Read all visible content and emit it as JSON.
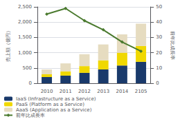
{
  "chart_data": {
    "type": "bar",
    "categories": [
      "2010",
      "2011",
      "2012",
      "2013",
      "2014",
      "2105"
    ],
    "stacked": true,
    "grid": true,
    "legend": "bottom",
    "ylabel": "売上額（億円）",
    "y2label": "前年比成長率",
    "ylim": [
      0,
      2500
    ],
    "yticks": [
      0,
      500,
      {
        "value": 1000,
        "label": "1,000"
      },
      {
        "value": 1500,
        "label": "1,500"
      },
      {
        "value": 2000,
        "label": "2,000"
      },
      {
        "value": 2500,
        "label": "2,500"
      }
    ],
    "y2lim": [
      0,
      50
    ],
    "y2ticks": [
      0,
      10,
      20,
      30,
      40,
      50
    ],
    "series": [
      {
        "name": "IaaS (Infrastructure as a Service)",
        "color": "#1a3a6b",
        "values": [
          200,
          250,
          340,
          450,
          580,
          700
        ]
      },
      {
        "name": "PaaS (Platform as a Service)",
        "color": "#f0d800",
        "values": [
          90,
          140,
          220,
          300,
          420,
          520
        ]
      },
      {
        "name": "AaaS (Application as a Service)",
        "color": "#e6dcc0",
        "values": [
          160,
          260,
          390,
          520,
          600,
          730
        ]
      },
      {
        "name": "前年比成長率",
        "type": "line",
        "axis": "y2",
        "marker": "diamond",
        "color": "#4a7a2e",
        "values": [
          45.3,
          49,
          41,
          35,
          27,
          21
        ]
      }
    ]
  }
}
